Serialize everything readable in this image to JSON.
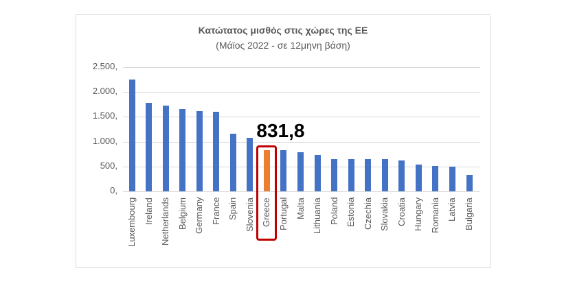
{
  "chart_data": {
    "type": "bar",
    "title": "Κατώτατος μισθός στις χώρες της ΕΕ",
    "subtitle": "(Μάϊος 2022 - σε 12μηνη βάση)",
    "xlabel": "",
    "ylabel": "",
    "ylim": [
      0,
      2500
    ],
    "yticks": [
      0,
      500,
      1000,
      1500,
      2000,
      2500
    ],
    "ytick_labels": [
      "0,",
      "500,",
      "1.000,",
      "1.500,",
      "2.000,",
      "2.500,"
    ],
    "grid": true,
    "legend": null,
    "categories": [
      "Luxembourg",
      "Ireland",
      "Netherlands",
      "Belgium",
      "Germany",
      "France",
      "Spain",
      "Slovenia",
      "Greece",
      "Portugal",
      "Malta",
      "Lithuania",
      "Poland",
      "Estonia",
      "Czechia",
      "Slovakia",
      "Croatia",
      "Hungary",
      "Romania",
      "Latvia",
      "Bulgaria"
    ],
    "values": [
      2257,
      1775,
      1725,
      1658,
      1621,
      1603,
      1167,
      1074,
      831.8,
      823,
      792,
      730,
      655,
      654,
      652,
      646,
      624,
      542,
      515,
      500,
      332
    ],
    "colors": {
      "default": "#4472c4",
      "highlight": "#ed7d31",
      "highlight_box": "#c00000"
    },
    "highlight": {
      "category": "Greece",
      "index": 8,
      "label": "831,8"
    }
  }
}
